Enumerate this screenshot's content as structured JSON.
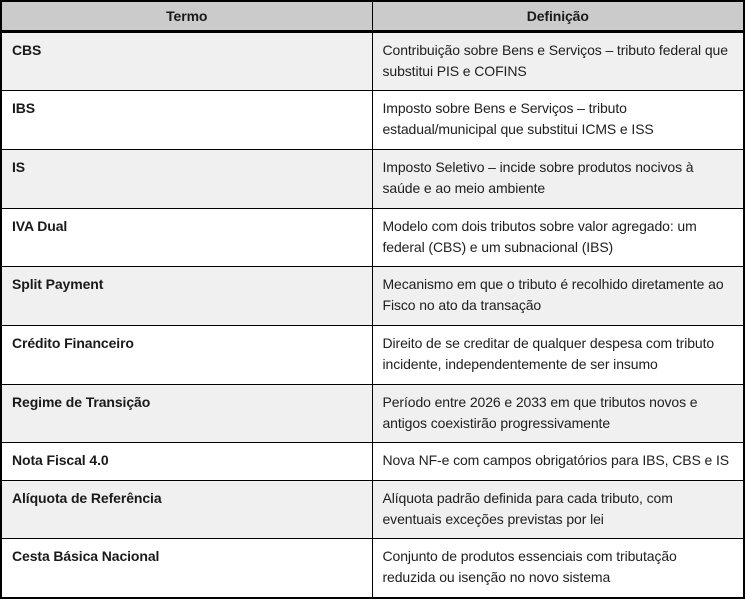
{
  "table": {
    "columns": [
      {
        "label": "Termo"
      },
      {
        "label": "Definição"
      }
    ],
    "rows": [
      {
        "term": "CBS",
        "definition": "Contribuição sobre Bens e Serviços – tributo federal que substitui PIS e COFINS"
      },
      {
        "term": "IBS",
        "definition": "Imposto sobre Bens e Serviços – tributo estadual/municipal que substitui ICMS e ISS"
      },
      {
        "term": "IS",
        "definition": "Imposto Seletivo – incide sobre produtos nocivos à saúde e ao meio ambiente"
      },
      {
        "term": "IVA Dual",
        "definition": "Modelo com dois tributos sobre valor agregado: um federal (CBS) e um subnacional (IBS)"
      },
      {
        "term": "Split Payment",
        "definition": "Mecanismo em que o tributo é recolhido diretamente ao Fisco no ato da transação"
      },
      {
        "term": "Crédito Financeiro",
        "definition": "Direito de se creditar de qualquer despesa com tributo incidente, independentemente de ser insumo"
      },
      {
        "term": "Regime de Transição",
        "definition": "Período entre 2026 e 2033 em que tributos novos e antigos coexistirão progressivamente"
      },
      {
        "term": "Nota Fiscal 4.0",
        "definition": "Nova NF-e com campos obrigatórios para IBS, CBS e IS"
      },
      {
        "term": "Alíquota de Referência",
        "definition": "Alíquota padrão definida para cada tributo, com eventuais exceções previstas por lei"
      },
      {
        "term": "Cesta Básica Nacional",
        "definition": "Conjunto de produtos essenciais com tributação reduzida ou isenção no novo sistema"
      }
    ],
    "colors": {
      "header_bg": "#cbcbcb",
      "stripe_row_bg": "#f0f0f0",
      "plain_row_bg": "#ffffff",
      "border": "#000000",
      "text": "#1a1a1a"
    }
  }
}
